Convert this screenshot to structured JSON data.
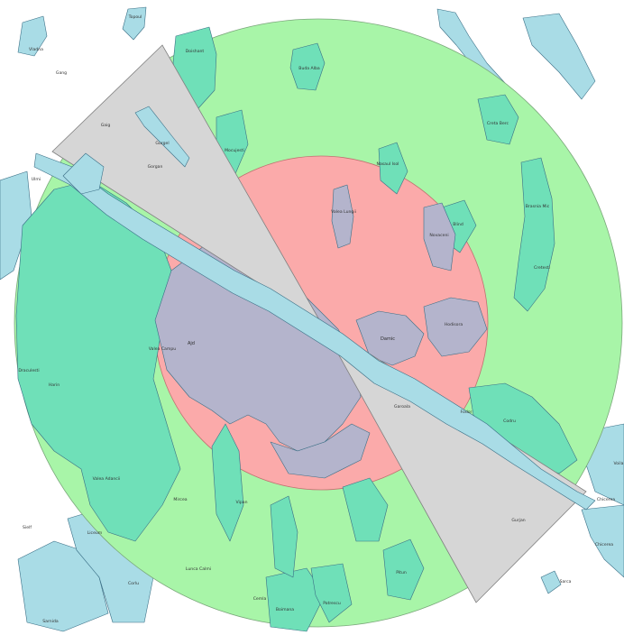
{
  "colors": {
    "background": "#ffffff",
    "outer_zone": "#a8f5a8",
    "inner_zone": "#fbaaaa",
    "excluded_sector": "#d6d6d6",
    "water_land_feature": "#a9dce6",
    "feature_stroke": "#3a6f86"
  },
  "places": {
    "ajd": "Ajd",
    "darnic": "Damic",
    "hodisora": "Hodisora",
    "vaduLungii": "Valea Lungii",
    "novaceni": "Novaceni",
    "gurgel": "Gurgel",
    "gaig": "Gaig",
    "gorgan": "Gorgan",
    "doishant": "Doishant",
    "budaAlba": "Buda Alba",
    "cretaBerc": "Creta Berc",
    "blind": "Blind",
    "nasaulIsol": "Nasaul Isol",
    "brasniaMic": "Brasnia Mic",
    "mocujesti": "Mocujesti",
    "cretesti": "Cretesti",
    "draculesti": "Draculesti",
    "harin": "Harin",
    "veleaAdancii": "Valea Adancii",
    "liceumPlt": "Liceum",
    "sielf": "Sielf",
    "valCampu": "Valea Campu",
    "vipan": "Vipan",
    "mircea": "Mircea",
    "lungaCalmi": "Lunca Calmi",
    "boimana": "Boimana",
    "cemla": "Cemla",
    "patrescu": "Patrescu",
    "pitun": "Pitun",
    "gurjan": "Gurjan",
    "chicerea": "Chicerea",
    "chicerea2": "Chicerea",
    "codru": "Codru",
    "garoala": "Garoala",
    "fodor": "Fodor",
    "sarca": "Sarca",
    "sarnida": "Sarnida",
    "topoul": "Topoul",
    "vladna": "Vladna",
    "gang": "Gang",
    "corlu": "Corlu",
    "ulmi": "Ulmi",
    "voila": "Voila"
  }
}
